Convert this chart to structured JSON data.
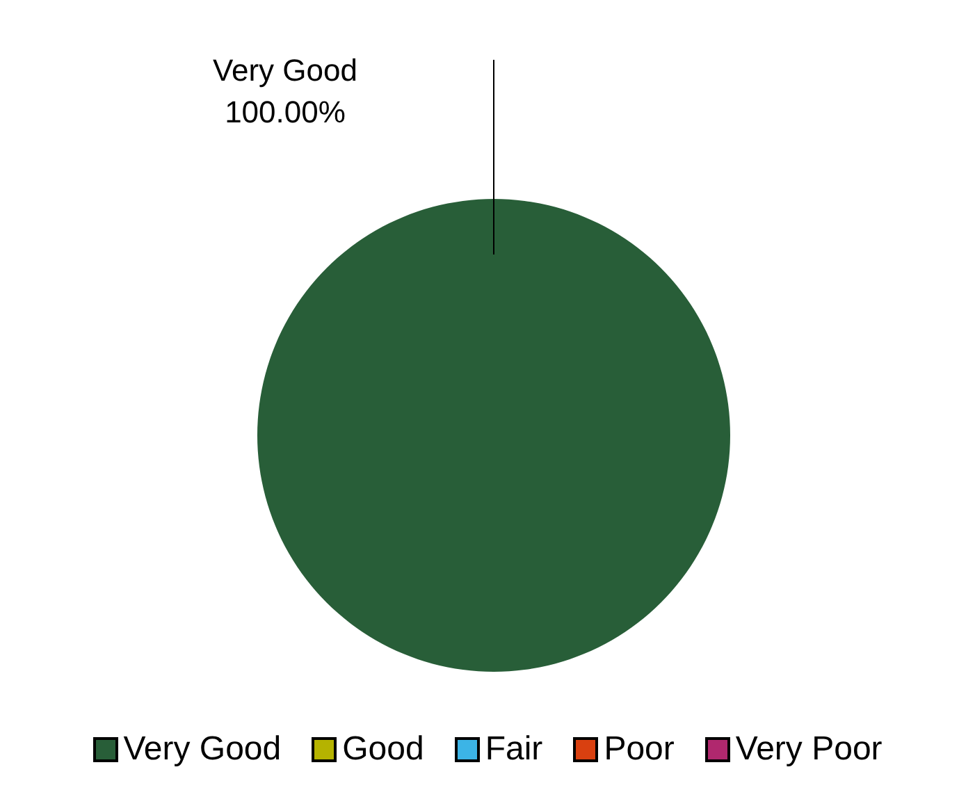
{
  "chart_data": {
    "type": "pie",
    "categories": [
      "Very Good",
      "Good",
      "Fair",
      "Poor",
      "Very Poor"
    ],
    "values": [
      100,
      0,
      0,
      0,
      0
    ],
    "colors": [
      "#285e38",
      "#b5b300",
      "#3cb4e6",
      "#d94010",
      "#b0286e"
    ],
    "value_labels": [
      "100.00%",
      null,
      null,
      null,
      null
    ],
    "legend": "bottom"
  }
}
